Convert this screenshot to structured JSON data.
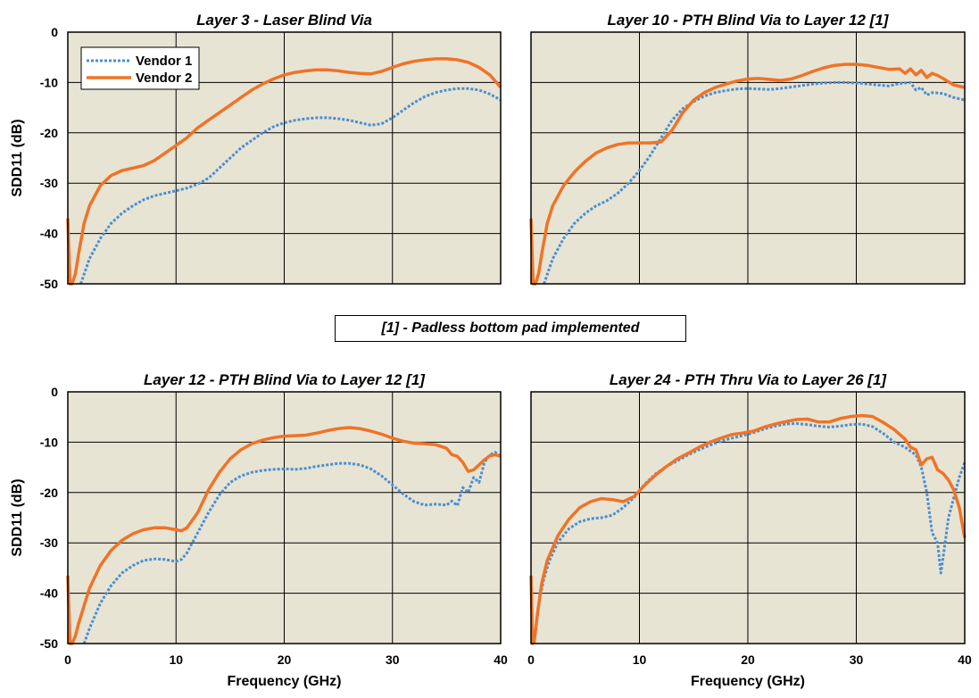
{
  "colors": {
    "vendor1": "#4a8fd1",
    "vendor2": "#f07327",
    "plot_bg": "#e8e4d4",
    "grid": "#000000"
  },
  "note": "[1] - Padless bottom pad implemented",
  "chart_data": [
    {
      "type": "line",
      "title": "Layer 3 - Laser Blind Via",
      "xlabel": "",
      "ylabel": "SDD11 (dB)",
      "xlim": [
        0,
        40
      ],
      "ylim": [
        -50,
        0
      ],
      "xticks": [],
      "yticks": [
        "0",
        "-10",
        "-20",
        "-30",
        "-40",
        "-50"
      ],
      "grid": true,
      "legend": {
        "position": "top-left",
        "entries": [
          "Vendor 1",
          "Vendor 2"
        ]
      },
      "series": [
        {
          "name": "Vendor 1",
          "style": "dotted",
          "x": [
            1.2,
            2,
            3,
            4,
            5,
            6,
            7,
            8,
            9,
            10,
            11,
            12,
            13,
            14,
            15,
            16,
            17,
            18,
            19,
            20,
            21,
            22,
            23,
            24,
            25,
            26,
            27,
            28,
            29,
            30,
            31,
            32,
            33,
            34,
            35,
            36,
            37,
            38,
            39,
            40
          ],
          "y": [
            -50,
            -45,
            -41,
            -38,
            -36,
            -34.5,
            -33.3,
            -32.5,
            -32,
            -31.5,
            -31,
            -30.2,
            -29,
            -27,
            -25,
            -23,
            -21.5,
            -20,
            -18.8,
            -18,
            -17.5,
            -17.2,
            -17,
            -17,
            -17.2,
            -17.5,
            -18,
            -18.5,
            -18.2,
            -17,
            -15.5,
            -14,
            -12.8,
            -12,
            -11.5,
            -11.2,
            -11.2,
            -11.5,
            -12.3,
            -13.5
          ]
        },
        {
          "name": "Vendor 2",
          "style": "solid",
          "x": [
            0,
            0.2,
            0.4,
            0.7,
            1,
            1.5,
            2,
            3,
            4,
            5,
            6,
            7,
            8,
            9,
            10,
            11,
            12,
            13,
            14,
            15,
            16,
            17,
            18,
            19,
            20,
            21,
            22,
            23,
            24,
            25,
            26,
            27,
            28,
            29,
            30,
            31,
            32,
            33,
            34,
            35,
            36,
            37,
            38,
            39,
            40
          ],
          "y": [
            -37,
            -50,
            -50,
            -48,
            -44,
            -38,
            -34.5,
            -30.5,
            -28.5,
            -27.5,
            -27,
            -26.5,
            -25.5,
            -24,
            -22.5,
            -21,
            -19,
            -17.5,
            -16,
            -14.5,
            -13,
            -11.5,
            -10.3,
            -9.3,
            -8.5,
            -8,
            -7.7,
            -7.5,
            -7.5,
            -7.7,
            -8,
            -8.2,
            -8.3,
            -7.8,
            -7,
            -6.3,
            -5.8,
            -5.5,
            -5.3,
            -5.3,
            -5.5,
            -6,
            -7,
            -8.5,
            -11
          ]
        }
      ]
    },
    {
      "type": "line",
      "title": "Layer 10 - PTH Blind Via to Layer 12 [1]",
      "xlabel": "",
      "ylabel": "",
      "xlim": [
        0,
        40
      ],
      "ylim": [
        -50,
        0
      ],
      "xticks": [],
      "yticks": [],
      "grid": true,
      "series": [
        {
          "name": "Vendor 1",
          "style": "dotted",
          "x": [
            1.2,
            2,
            3,
            4,
            5,
            6,
            7,
            8,
            9,
            10,
            11,
            12,
            13,
            14,
            15,
            16,
            17,
            18,
            19,
            20,
            21,
            22,
            23,
            24,
            25,
            26,
            27,
            28,
            29,
            30,
            31,
            32,
            33,
            34,
            35,
            35.5,
            36,
            36.5,
            37,
            38,
            39,
            40
          ],
          "y": [
            -50,
            -45,
            -41,
            -38,
            -36,
            -34.5,
            -33.5,
            -32,
            -30,
            -27.5,
            -24.5,
            -21,
            -17.5,
            -15.2,
            -13.8,
            -12.7,
            -12,
            -11.6,
            -11.3,
            -11.2,
            -11.3,
            -11.4,
            -11.2,
            -10.9,
            -10.6,
            -10.3,
            -10.1,
            -10,
            -10,
            -10.1,
            -10.3,
            -10.5,
            -10.7,
            -10.2,
            -10,
            -11.5,
            -11,
            -12.5,
            -12,
            -12.2,
            -13,
            -13.5
          ]
        },
        {
          "name": "Vendor 2",
          "style": "solid",
          "x": [
            0,
            0.2,
            0.4,
            0.7,
            1,
            1.5,
            2,
            3,
            4,
            5,
            6,
            7,
            8,
            9,
            10,
            11,
            12,
            13,
            14,
            15,
            16,
            17,
            18,
            19,
            20,
            21,
            22,
            23,
            24,
            25,
            26,
            27,
            28,
            29,
            30,
            31,
            32,
            33,
            34,
            34.5,
            35,
            35.5,
            36,
            36.5,
            37,
            37.5,
            38,
            39,
            40
          ],
          "y": [
            -37,
            -50,
            -50,
            -48,
            -44,
            -38,
            -34.5,
            -30.5,
            -27.8,
            -25.7,
            -24,
            -23,
            -22.3,
            -22,
            -22,
            -22,
            -21.8,
            -19.5,
            -16,
            -13.5,
            -12,
            -11,
            -10.3,
            -9.7,
            -9.3,
            -9.2,
            -9.4,
            -9.6,
            -9.3,
            -8.6,
            -7.8,
            -7.1,
            -6.6,
            -6.4,
            -6.4,
            -6.6,
            -7,
            -7.4,
            -7.3,
            -8.2,
            -7.3,
            -8.5,
            -7.6,
            -9,
            -8.2,
            -8.6,
            -9.2,
            -10.5,
            -11
          ]
        }
      ]
    },
    {
      "type": "line",
      "title": "Layer 12 - PTH Blind Via to Layer 12 [1]",
      "xlabel": "Frequency (GHz)",
      "ylabel": "SDD11 (dB)",
      "xlim": [
        0,
        40
      ],
      "ylim": [
        -50,
        0
      ],
      "xticks": [
        "0",
        "10",
        "20",
        "30",
        "40"
      ],
      "yticks": [
        "0",
        "-10",
        "-20",
        "-30",
        "-40",
        "-50"
      ],
      "grid": true,
      "series": [
        {
          "name": "Vendor 1",
          "style": "dotted",
          "x": [
            1.5,
            2,
            3,
            4,
            5,
            6,
            7,
            8,
            9,
            10,
            10.5,
            11,
            12,
            13,
            14,
            15,
            16,
            17,
            18,
            19,
            20,
            21,
            22,
            23,
            24,
            25,
            26,
            27,
            28,
            29,
            30,
            31,
            32,
            33,
            34,
            35,
            35.5,
            36,
            36.5,
            37,
            37.5,
            38,
            38.5,
            39,
            39.5,
            40
          ],
          "y": [
            -50,
            -47,
            -42,
            -38.5,
            -36,
            -34.5,
            -33.5,
            -33.2,
            -33.3,
            -33.7,
            -33.3,
            -32,
            -28,
            -24,
            -20.5,
            -18,
            -16.7,
            -16,
            -15.6,
            -15.4,
            -15.3,
            -15.4,
            -15.2,
            -14.8,
            -14.5,
            -14.2,
            -14.2,
            -14.5,
            -15.3,
            -16.7,
            -18.5,
            -20.3,
            -21.8,
            -22.5,
            -22.3,
            -22.5,
            -21.7,
            -22.6,
            -19,
            -20,
            -17,
            -18,
            -14,
            -12.5,
            -12,
            -12.8
          ]
        },
        {
          "name": "Vendor 2",
          "style": "solid",
          "x": [
            0,
            0.2,
            0.4,
            0.7,
            1,
            1.5,
            2,
            3,
            4,
            5,
            6,
            7,
            8,
            9,
            10,
            10.5,
            11,
            12,
            13,
            14,
            15,
            16,
            17,
            18,
            19,
            20,
            21,
            22,
            23,
            24,
            25,
            26,
            27,
            28,
            29,
            30,
            31,
            32,
            33,
            34,
            35,
            35.5,
            36,
            36.5,
            37,
            37.5,
            38,
            38.5,
            39,
            39.5,
            40
          ],
          "y": [
            -36.5,
            -50,
            -50,
            -48.5,
            -46,
            -42.5,
            -39,
            -34.5,
            -31.5,
            -29.5,
            -28.2,
            -27.4,
            -27,
            -27,
            -27.4,
            -27.6,
            -27,
            -24,
            -19.5,
            -16,
            -13.3,
            -11.5,
            -10.3,
            -9.6,
            -9.1,
            -8.8,
            -8.7,
            -8.6,
            -8.2,
            -7.7,
            -7.3,
            -7.1,
            -7.3,
            -7.8,
            -8.4,
            -9.2,
            -9.8,
            -10.2,
            -10.3,
            -10.5,
            -11.2,
            -12.5,
            -12.8,
            -14,
            -15.8,
            -15.5,
            -14.5,
            -13.5,
            -12.7,
            -12.5,
            -12.8
          ]
        }
      ]
    },
    {
      "type": "line",
      "title": "Layer 24 - PTH Thru Via to Layer 26 [1]",
      "xlabel": "Frequency (GHz)",
      "ylabel": "",
      "xlim": [
        0,
        40
      ],
      "ylim": [
        -50,
        0
      ],
      "xticks": [
        "0",
        "10",
        "20",
        "30",
        "40"
      ],
      "yticks": [],
      "grid": true,
      "series": [
        {
          "name": "Vendor 1",
          "style": "dotted",
          "x": [
            0.3,
            0.5,
            0.8,
            1.2,
            1.7,
            2.5,
            3.5,
            4.5,
            5.5,
            6.5,
            7.5,
            8.5,
            9.5,
            10.5,
            11.5,
            12.5,
            13.5,
            14.5,
            15.5,
            16.5,
            17.5,
            18.5,
            19.5,
            20.5,
            21.5,
            22.5,
            23.5,
            24.5,
            25.5,
            26.5,
            27.5,
            28.5,
            29.5,
            30.5,
            31.5,
            32.5,
            33.5,
            34.5,
            35,
            35.5,
            36,
            36.5,
            37,
            37.5,
            37.8,
            38,
            38.5,
            39,
            39.5,
            40
          ],
          "y": [
            -50,
            -46,
            -41,
            -37,
            -33.5,
            -29.8,
            -27.2,
            -25.8,
            -25.2,
            -25,
            -24.5,
            -23,
            -21,
            -18.3,
            -16.3,
            -14.8,
            -13.7,
            -12.5,
            -11.5,
            -10.6,
            -9.8,
            -9.2,
            -8.7,
            -8.1,
            -7.4,
            -6.8,
            -6.4,
            -6.3,
            -6.5,
            -6.8,
            -7,
            -6.8,
            -6.5,
            -6.4,
            -6.9,
            -8.3,
            -10,
            -11,
            -11.8,
            -12.5,
            -15,
            -20,
            -28,
            -30,
            -36,
            -33,
            -25,
            -21,
            -17,
            -14
          ]
        },
        {
          "name": "Vendor 2",
          "style": "solid",
          "x": [
            0,
            0.15,
            0.3,
            0.6,
            1,
            1.5,
            2.5,
            3.5,
            4.5,
            5.5,
            6.5,
            7.5,
            8.5,
            9.5,
            10.5,
            11.5,
            12.5,
            13.5,
            14.5,
            15.5,
            16.5,
            17.5,
            18.5,
            19.5,
            20.5,
            21.5,
            22.5,
            23.5,
            24.5,
            25.5,
            26.5,
            27.5,
            28.5,
            29.5,
            30.5,
            31.5,
            32.5,
            33.5,
            34.5,
            35,
            35.5,
            36,
            36.5,
            37,
            37.5,
            38,
            38.5,
            39,
            39.5,
            40
          ],
          "y": [
            -36.5,
            -50,
            -49.5,
            -44,
            -38,
            -33.5,
            -28.5,
            -25.3,
            -23,
            -21.8,
            -21.2,
            -21.4,
            -21.8,
            -20.8,
            -18.5,
            -16.5,
            -14.8,
            -13.3,
            -12.2,
            -11,
            -10,
            -9.2,
            -8.5,
            -8.2,
            -7.8,
            -7,
            -6.4,
            -5.9,
            -5.5,
            -5.4,
            -6,
            -6,
            -5.3,
            -4.9,
            -4.7,
            -4.9,
            -6.1,
            -7.5,
            -9.4,
            -11,
            -11.5,
            -14.5,
            -13.3,
            -13,
            -15.5,
            -16.2,
            -17.5,
            -19.5,
            -23,
            -29
          ]
        }
      ]
    }
  ]
}
